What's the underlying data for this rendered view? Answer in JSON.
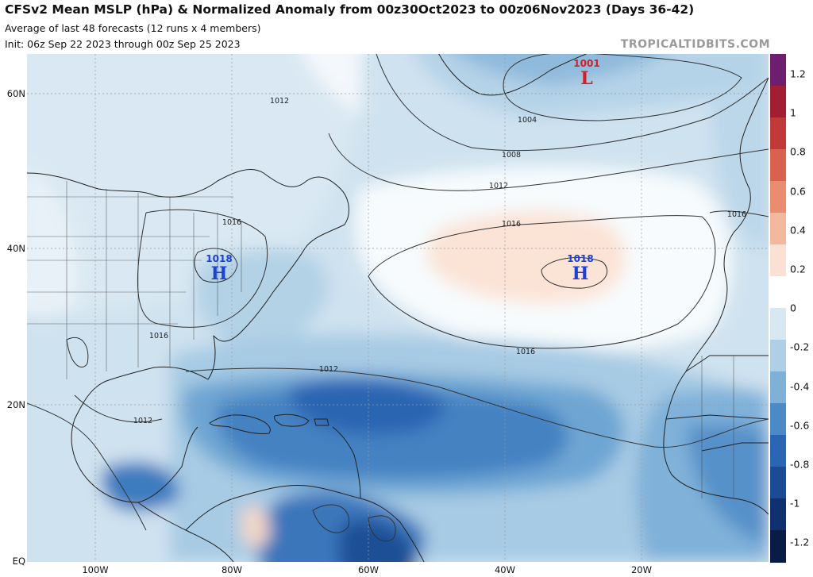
{
  "header": {
    "title": "CFSv2 Mean MSLP (hPa) & Normalized Anomaly from 00z30Oct2023 to 00z06Nov2023 (Days 36-42)",
    "subtitle_1": "Average of last 48 forecasts (12 runs x 4 members)",
    "subtitle_2": "Init: 06z Sep 22 2023 through 00z Sep 25 2023",
    "brand": "TROPICALTIDBITS.COM"
  },
  "axes": {
    "lat_labels": [
      "60N",
      "40N",
      "20N",
      "EQ"
    ],
    "lon_labels": [
      "100W",
      "80W",
      "60W",
      "40W",
      "20W"
    ]
  },
  "pressure_centers": [
    {
      "type": "L",
      "value": "1001",
      "color": "#d0202a"
    },
    {
      "type": "H",
      "value": "1018",
      "color": "#1c3fd6"
    },
    {
      "type": "H",
      "value": "1018",
      "color": "#1c3fd6"
    }
  ],
  "contour_labels": [
    "1004",
    "1008",
    "1012",
    "1012",
    "1016",
    "1016",
    "1012",
    "1016",
    "1016",
    "1012",
    "1016"
  ],
  "colorbar": {
    "labels": [
      "1.2",
      "1",
      "0.8",
      "0.6",
      "0.4",
      "0.2",
      "0",
      "-0.2",
      "-0.4",
      "-0.6",
      "-0.8",
      "-1",
      "-1.2"
    ],
    "colors": [
      "#6e1e6e",
      "#a21e32",
      "#c03a3a",
      "#d8624e",
      "#e98c70",
      "#f4b89e",
      "#fbe1d4",
      "#ffffff",
      "#d8e8f3",
      "#aecfe6",
      "#7fb0d8",
      "#4c8ac6",
      "#2a66b3",
      "#1a4b94",
      "#0f3170",
      "#081c45"
    ]
  }
}
